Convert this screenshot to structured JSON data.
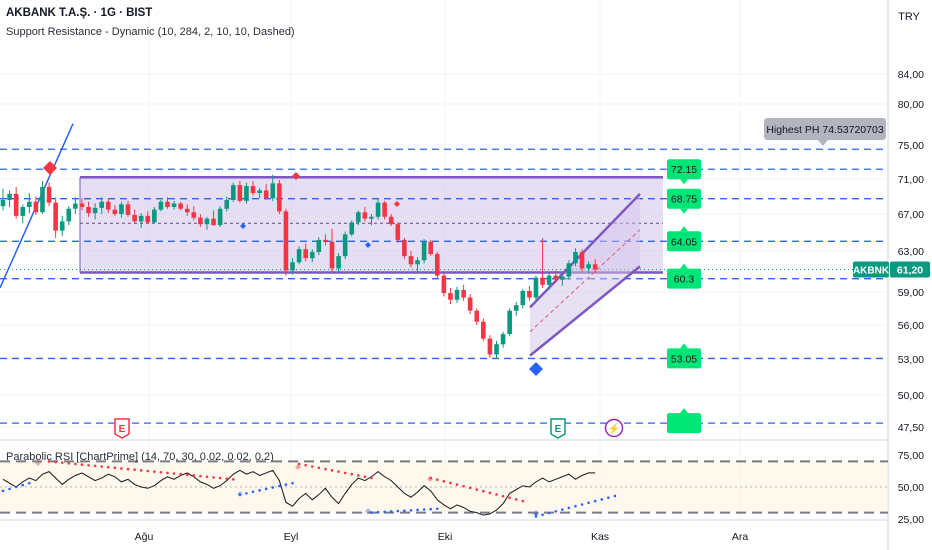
{
  "header": {
    "title": "AKBANK T.A.Ş. · 1G · BIST",
    "indicator": "Support Resistance - Dynamic (10, 284, 2, 10, 10, Dashed)"
  },
  "currency_button": "TRY",
  "price_axis": {
    "ticks": [
      {
        "label": "84,00",
        "value": 84
      },
      {
        "label": "80,00",
        "value": 80
      },
      {
        "label": "75,00",
        "value": 75
      },
      {
        "label": "71,00",
        "value": 71
      },
      {
        "label": "67,00",
        "value": 67
      },
      {
        "label": "63,00",
        "value": 63
      },
      {
        "label": "59,00",
        "value": 59
      },
      {
        "label": "56,00",
        "value": 56
      },
      {
        "label": "53,00",
        "value": 53
      },
      {
        "label": "50,00",
        "value": 50
      },
      {
        "label": "47,50",
        "value": 47.5
      }
    ],
    "current_symbol": "AKBNK",
    "current_price_label": "61,20",
    "current_price": 61.2
  },
  "time_axis": {
    "labels": [
      "Ağu",
      "Eyl",
      "Eki",
      "Kas",
      "Ara"
    ]
  },
  "levels": {
    "dashed_support_resistance": [
      74.5,
      72.15,
      68.75,
      64.05,
      60.3,
      53.05,
      47.8
    ],
    "box_top": 71.2,
    "box_bottom": 60.9,
    "box_mid": 66.0
  },
  "level_labels": [
    {
      "text": "72.15",
      "value": 72.15
    },
    {
      "text": "68.75",
      "value": 68.75
    },
    {
      "text": "64.05",
      "value": 64.05
    },
    {
      "text": "60.3",
      "value": 60.3
    },
    {
      "text": "53.05",
      "value": 53.05
    },
    {
      "text": "",
      "value": 47.8
    }
  ],
  "highest_ph_label": "Highest PH 74.53720703",
  "events": [
    {
      "glyph": "E",
      "type": "earnings",
      "color": "#f23645"
    },
    {
      "glyph": "E",
      "type": "earnings",
      "color": "#089981"
    },
    {
      "glyph": "⚡",
      "type": "split",
      "color": "#9c27b0"
    }
  ],
  "rsi_panel": {
    "label": "Parabolic RSI [ChartPrime] (14, 70, 30, 0.02, 0.02, 0.2)",
    "ticks": [
      {
        "label": "75,00",
        "value": 75
      },
      {
        "label": "50,00",
        "value": 50
      },
      {
        "label": "25,00",
        "value": 25
      }
    ],
    "overbought": 70,
    "oversold": 30
  },
  "colors": {
    "up": "#089981",
    "down": "#f23645",
    "box_fill": "#d1c4e9",
    "box_border": "#7e57c2",
    "level_line": "#2962ff",
    "label_green": "#00e676",
    "channel": "#7e57c2"
  },
  "chart_data": {
    "type": "candlestick",
    "symbol": "AKBANK T.A.Ş.",
    "interval": "1G",
    "exchange": "BIST",
    "ylim": [
      46,
      86
    ],
    "candles": [
      [
        67.9,
        69.9,
        67.4,
        68.6
      ],
      [
        68.6,
        69.7,
        67.8,
        69.3
      ],
      [
        69.3,
        70.1,
        66.5,
        66.8
      ],
      [
        66.8,
        68.1,
        66.0,
        67.8
      ],
      [
        67.8,
        69.4,
        67.1,
        68.4
      ],
      [
        68.4,
        69.0,
        66.9,
        67.2
      ],
      [
        67.2,
        70.8,
        67.0,
        70.1
      ],
      [
        70.1,
        70.6,
        67.9,
        68.3
      ],
      [
        68.3,
        68.9,
        64.4,
        65.2
      ],
      [
        65.2,
        66.8,
        64.6,
        66.2
      ],
      [
        66.2,
        67.9,
        65.8,
        67.6
      ],
      [
        67.6,
        68.9,
        67.0,
        68.2
      ],
      [
        68.2,
        68.8,
        67.4,
        67.8
      ],
      [
        67.8,
        68.4,
        66.7,
        67.1
      ],
      [
        67.1,
        68.2,
        66.4,
        67.7
      ],
      [
        67.7,
        68.9,
        67.0,
        68.4
      ],
      [
        68.4,
        68.7,
        67.1,
        67.5
      ],
      [
        67.5,
        68.0,
        66.8,
        67.0
      ],
      [
        67.0,
        68.4,
        66.6,
        68.1
      ],
      [
        68.1,
        68.5,
        66.7,
        66.9
      ],
      [
        66.9,
        67.5,
        65.9,
        66.2
      ],
      [
        66.2,
        67.1,
        65.5,
        66.8
      ],
      [
        66.8,
        67.3,
        65.9,
        66.1
      ],
      [
        66.1,
        67.8,
        66.0,
        67.5
      ],
      [
        67.5,
        68.6,
        67.3,
        68.4
      ],
      [
        68.4,
        68.9,
        67.6,
        67.8
      ],
      [
        67.8,
        68.5,
        67.5,
        68.2
      ],
      [
        68.2,
        68.4,
        67.4,
        67.6
      ],
      [
        67.6,
        68.1,
        66.8,
        67.2
      ],
      [
        67.2,
        67.9,
        66.3,
        66.6
      ],
      [
        66.6,
        67.0,
        65.6,
        65.9
      ],
      [
        65.9,
        66.7,
        65.3,
        66.5
      ],
      [
        66.5,
        67.4,
        65.7,
        65.8
      ],
      [
        65.8,
        67.9,
        65.6,
        67.6
      ],
      [
        67.6,
        69.0,
        67.3,
        68.6
      ],
      [
        68.6,
        70.6,
        68.4,
        70.3
      ],
      [
        70.3,
        70.8,
        68.3,
        68.5
      ],
      [
        68.5,
        70.6,
        68.2,
        70.2
      ],
      [
        70.2,
        70.8,
        69.1,
        69.4
      ],
      [
        69.4,
        70.0,
        68.8,
        69.7
      ],
      [
        69.7,
        70.4,
        68.6,
        68.8
      ],
      [
        68.8,
        71.5,
        68.5,
        70.5
      ],
      [
        70.5,
        70.9,
        67.0,
        67.3
      ],
      [
        67.3,
        67.6,
        60.6,
        61.1
      ],
      [
        61.1,
        62.3,
        60.7,
        61.9
      ],
      [
        61.9,
        63.5,
        61.7,
        63.2
      ],
      [
        63.2,
        63.8,
        62.0,
        62.3
      ],
      [
        62.3,
        63.2,
        61.9,
        62.9
      ],
      [
        62.9,
        64.5,
        62.6,
        64.2
      ],
      [
        64.2,
        64.8,
        63.6,
        64.0
      ],
      [
        64.0,
        65.4,
        60.9,
        61.3
      ],
      [
        61.3,
        62.8,
        61.0,
        62.5
      ],
      [
        62.5,
        65.1,
        62.2,
        64.8
      ],
      [
        64.8,
        66.3,
        64.6,
        66.1
      ],
      [
        66.1,
        67.4,
        65.8,
        67.2
      ],
      [
        67.2,
        67.8,
        66.2,
        66.5
      ],
      [
        66.5,
        67.0,
        65.8,
        66.7
      ],
      [
        66.7,
        68.7,
        66.4,
        68.3
      ],
      [
        68.3,
        68.5,
        66.4,
        66.7
      ],
      [
        66.7,
        67.0,
        65.7,
        65.9
      ],
      [
        65.9,
        66.1,
        63.9,
        64.2
      ],
      [
        64.2,
        64.4,
        62.2,
        62.5
      ],
      [
        62.5,
        63.0,
        61.4,
        61.7
      ],
      [
        61.7,
        62.4,
        60.9,
        62.1
      ],
      [
        62.1,
        64.3,
        61.8,
        64.0
      ],
      [
        64.0,
        64.2,
        62.5,
        62.7
      ],
      [
        62.7,
        62.9,
        60.3,
        60.6
      ],
      [
        60.6,
        60.8,
        58.6,
        58.9
      ],
      [
        58.9,
        59.4,
        57.9,
        58.3
      ],
      [
        58.3,
        59.5,
        58.0,
        59.2
      ],
      [
        59.2,
        59.7,
        58.2,
        58.5
      ],
      [
        58.5,
        58.8,
        57.0,
        57.3
      ],
      [
        57.3,
        57.5,
        56.0,
        56.3
      ],
      [
        56.3,
        56.6,
        54.6,
        54.8
      ],
      [
        54.8,
        55.1,
        53.1,
        53.4
      ],
      [
        53.4,
        54.6,
        53.0,
        54.3
      ],
      [
        54.3,
        55.4,
        54.0,
        55.2
      ],
      [
        55.2,
        57.5,
        55.0,
        57.3
      ],
      [
        57.3,
        58.1,
        56.8,
        57.8
      ],
      [
        57.8,
        59.3,
        57.5,
        59.1
      ],
      [
        59.1,
        59.6,
        58.2,
        58.5
      ],
      [
        58.5,
        60.6,
        58.2,
        60.4
      ],
      [
        60.4,
        64.4,
        59.4,
        59.7
      ],
      [
        59.7,
        60.9,
        59.2,
        60.6
      ],
      [
        60.6,
        61.1,
        59.9,
        60.2
      ],
      [
        60.2,
        60.8,
        59.6,
        60.5
      ],
      [
        60.5,
        62.1,
        60.2,
        61.8
      ],
      [
        61.8,
        63.3,
        61.5,
        62.9
      ],
      [
        62.9,
        63.2,
        61.0,
        61.3
      ],
      [
        61.3,
        62.0,
        60.8,
        61.7
      ],
      [
        61.7,
        62.2,
        60.9,
        61.2
      ]
    ],
    "rsi": [
      56,
      53,
      50,
      54,
      57,
      55,
      60,
      62,
      57,
      52,
      56,
      59,
      61,
      58,
      55,
      57,
      60,
      58,
      54,
      56,
      52,
      50,
      49,
      51,
      55,
      58,
      56,
      59,
      61,
      58,
      54,
      52,
      49,
      51,
      55,
      60,
      63,
      60,
      62,
      59,
      61,
      63,
      55,
      38,
      35,
      41,
      45,
      40,
      44,
      49,
      42,
      37,
      45,
      52,
      57,
      55,
      58,
      62,
      58,
      55,
      50,
      45,
      42,
      46,
      51,
      47,
      40,
      36,
      33,
      36,
      34,
      31,
      30,
      28,
      29,
      32,
      37,
      45,
      48,
      51,
      50,
      54,
      57,
      54,
      56,
      58,
      60,
      56,
      59,
      61,
      61
    ]
  }
}
